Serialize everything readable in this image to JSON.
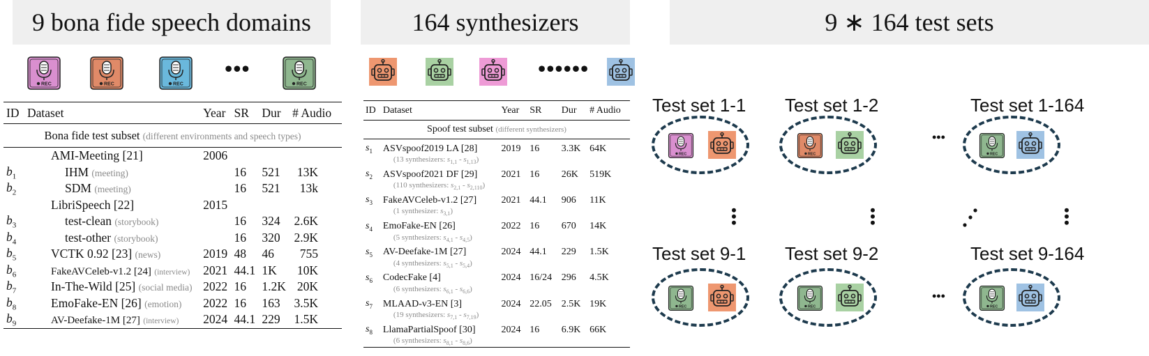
{
  "headers": {
    "domains": "9 bona fide speech domains",
    "synthesizers": "164 synthesizers",
    "test_sets": "9 ∗ 164  test sets"
  },
  "colors": {
    "mic_pink": "#d98fcf",
    "mic_orange": "#e08a68",
    "mic_blue": "#6ab8dc",
    "mic_green": "#8fb78f",
    "robot_orange": "#ee9770",
    "robot_green": "#a9d1a3",
    "robot_pink": "#ee9bd6",
    "robot_blue": "#9fc2e3",
    "ellipse": "#1d3a4d"
  },
  "icons": {
    "mic": "microphone-rec-icon",
    "robot": "robot-icon",
    "rec_text": "REC"
  },
  "ellipsis": "•••",
  "ellipsis_long": "••••••",
  "table1": {
    "headers": [
      "ID",
      "Dataset",
      "Year",
      "SR",
      "Dur",
      "# Audio"
    ],
    "subset": "Bona fide test subset",
    "subset_note": "(different environments and speech types)",
    "rows": [
      {
        "id": "",
        "sub": "",
        "name": "AMI-Meeting [21]",
        "note": "",
        "year": "2006",
        "sr": "",
        "dur": "",
        "audio": "",
        "indent": false
      },
      {
        "id": "b",
        "sub": "1",
        "name": "IHM",
        "note": "(meeting)",
        "year": "",
        "sr": "16",
        "dur": "521",
        "audio": "13K",
        "indent": true
      },
      {
        "id": "b",
        "sub": "2",
        "name": "SDM",
        "note": "(meeting)",
        "year": "",
        "sr": "16",
        "dur": "521",
        "audio": "13k",
        "indent": true
      },
      {
        "id": "",
        "sub": "",
        "name": "LibriSpeech [22]",
        "note": "",
        "year": "2015",
        "sr": "",
        "dur": "",
        "audio": "",
        "indent": false
      },
      {
        "id": "b",
        "sub": "3",
        "name": "test-clean",
        "note": "(storybook)",
        "year": "",
        "sr": "16",
        "dur": "324",
        "audio": "2.6K",
        "indent": true
      },
      {
        "id": "b",
        "sub": "4",
        "name": "test-other",
        "note": "(storybook)",
        "year": "",
        "sr": "16",
        "dur": "320",
        "audio": "2.9K",
        "indent": true
      },
      {
        "id": "b",
        "sub": "5",
        "name": "VCTK 0.92 [23]",
        "note": "(news)",
        "year": "2019",
        "sr": "48",
        "dur": "46",
        "audio": "755",
        "indent": false
      },
      {
        "id": "b",
        "sub": "6",
        "name": "FakeAVCeleb-v1.2 [24]",
        "note": "(interview)",
        "year": "2021",
        "sr": "44.1",
        "dur": "1K",
        "audio": "10K",
        "indent": false
      },
      {
        "id": "b",
        "sub": "7",
        "name": "In-The-Wild [25]",
        "note": "(social media)",
        "year": "2022",
        "sr": "16",
        "dur": "1.2K",
        "audio": "20K",
        "indent": false
      },
      {
        "id": "b",
        "sub": "8",
        "name": "EmoFake-EN [26]",
        "note": "(emotion)",
        "year": "2022",
        "sr": "16",
        "dur": "163",
        "audio": "3.5K",
        "indent": false
      },
      {
        "id": "b",
        "sub": "9",
        "name": "AV-Deefake-1M [27]",
        "note": "(interview)",
        "year": "2024",
        "sr": "44.1",
        "dur": "229",
        "audio": "1.5K",
        "indent": false
      }
    ]
  },
  "table2": {
    "headers": [
      "ID",
      "Dataset",
      "Year",
      "SR",
      "Dur",
      "# Audio"
    ],
    "subset": "Spoof test subset",
    "subset_note": "(different synthesizers)",
    "rows": [
      {
        "id": "s",
        "sub": "1",
        "name": "ASVspoof2019 LA [28]",
        "year": "2019",
        "sr": "16",
        "dur": "3.3K",
        "audio": "64K",
        "note": "(13 synthesizers: s1,1 - s1,13)"
      },
      {
        "id": "s",
        "sub": "2",
        "name": "ASVspoof2021 DF [29]",
        "year": "2021",
        "sr": "16",
        "dur": "26K",
        "audio": "519K",
        "note": "(110 synthesizers: s2,1 - s2,110)"
      },
      {
        "id": "s",
        "sub": "3",
        "name": "FakeAVCeleb-v1.2 [27]",
        "year": "2021",
        "sr": "44.1",
        "dur": "906",
        "audio": "11K",
        "note": "(1 synthesizer: s3,1)"
      },
      {
        "id": "s",
        "sub": "4",
        "name": "EmoFake-EN [26]",
        "year": "2022",
        "sr": "16",
        "dur": "670",
        "audio": "14K",
        "note": "(5 synthesizers: s4,1 - s4,5)"
      },
      {
        "id": "s",
        "sub": "5",
        "name": "AV-Deefake-1M [27]",
        "year": "2024",
        "sr": "44.1",
        "dur": "229",
        "audio": "1.5K",
        "note": "(4 synthesizers: s5,1 - s5,4)"
      },
      {
        "id": "s",
        "sub": "6",
        "name": "CodecFake [4]",
        "year": "2024",
        "sr": "16/24",
        "dur": "296",
        "audio": "4.5K",
        "note": "(6 synthesizers: s6,1 - s6,6)"
      },
      {
        "id": "s",
        "sub": "7",
        "name": "MLAAD-v3-EN [3]",
        "year": "2024",
        "sr": "22.05",
        "dur": "2.5K",
        "audio": "19K",
        "note": "(19 synthesizers: s7,1 - s7,19)"
      },
      {
        "id": "s",
        "sub": "8",
        "name": "LlamaPartialSpoof [30]",
        "year": "2024",
        "sr": "16",
        "dur": "6.9K",
        "audio": "66K",
        "note": "(6 synthesizers: s8,1 - s8,6)"
      }
    ]
  },
  "test_sets": {
    "labels": [
      "Test set 1-1",
      "Test set 1-2",
      "Test set 1-164",
      "Test set 9-1",
      "Test set 9-2",
      "Test set 9-164"
    ]
  }
}
